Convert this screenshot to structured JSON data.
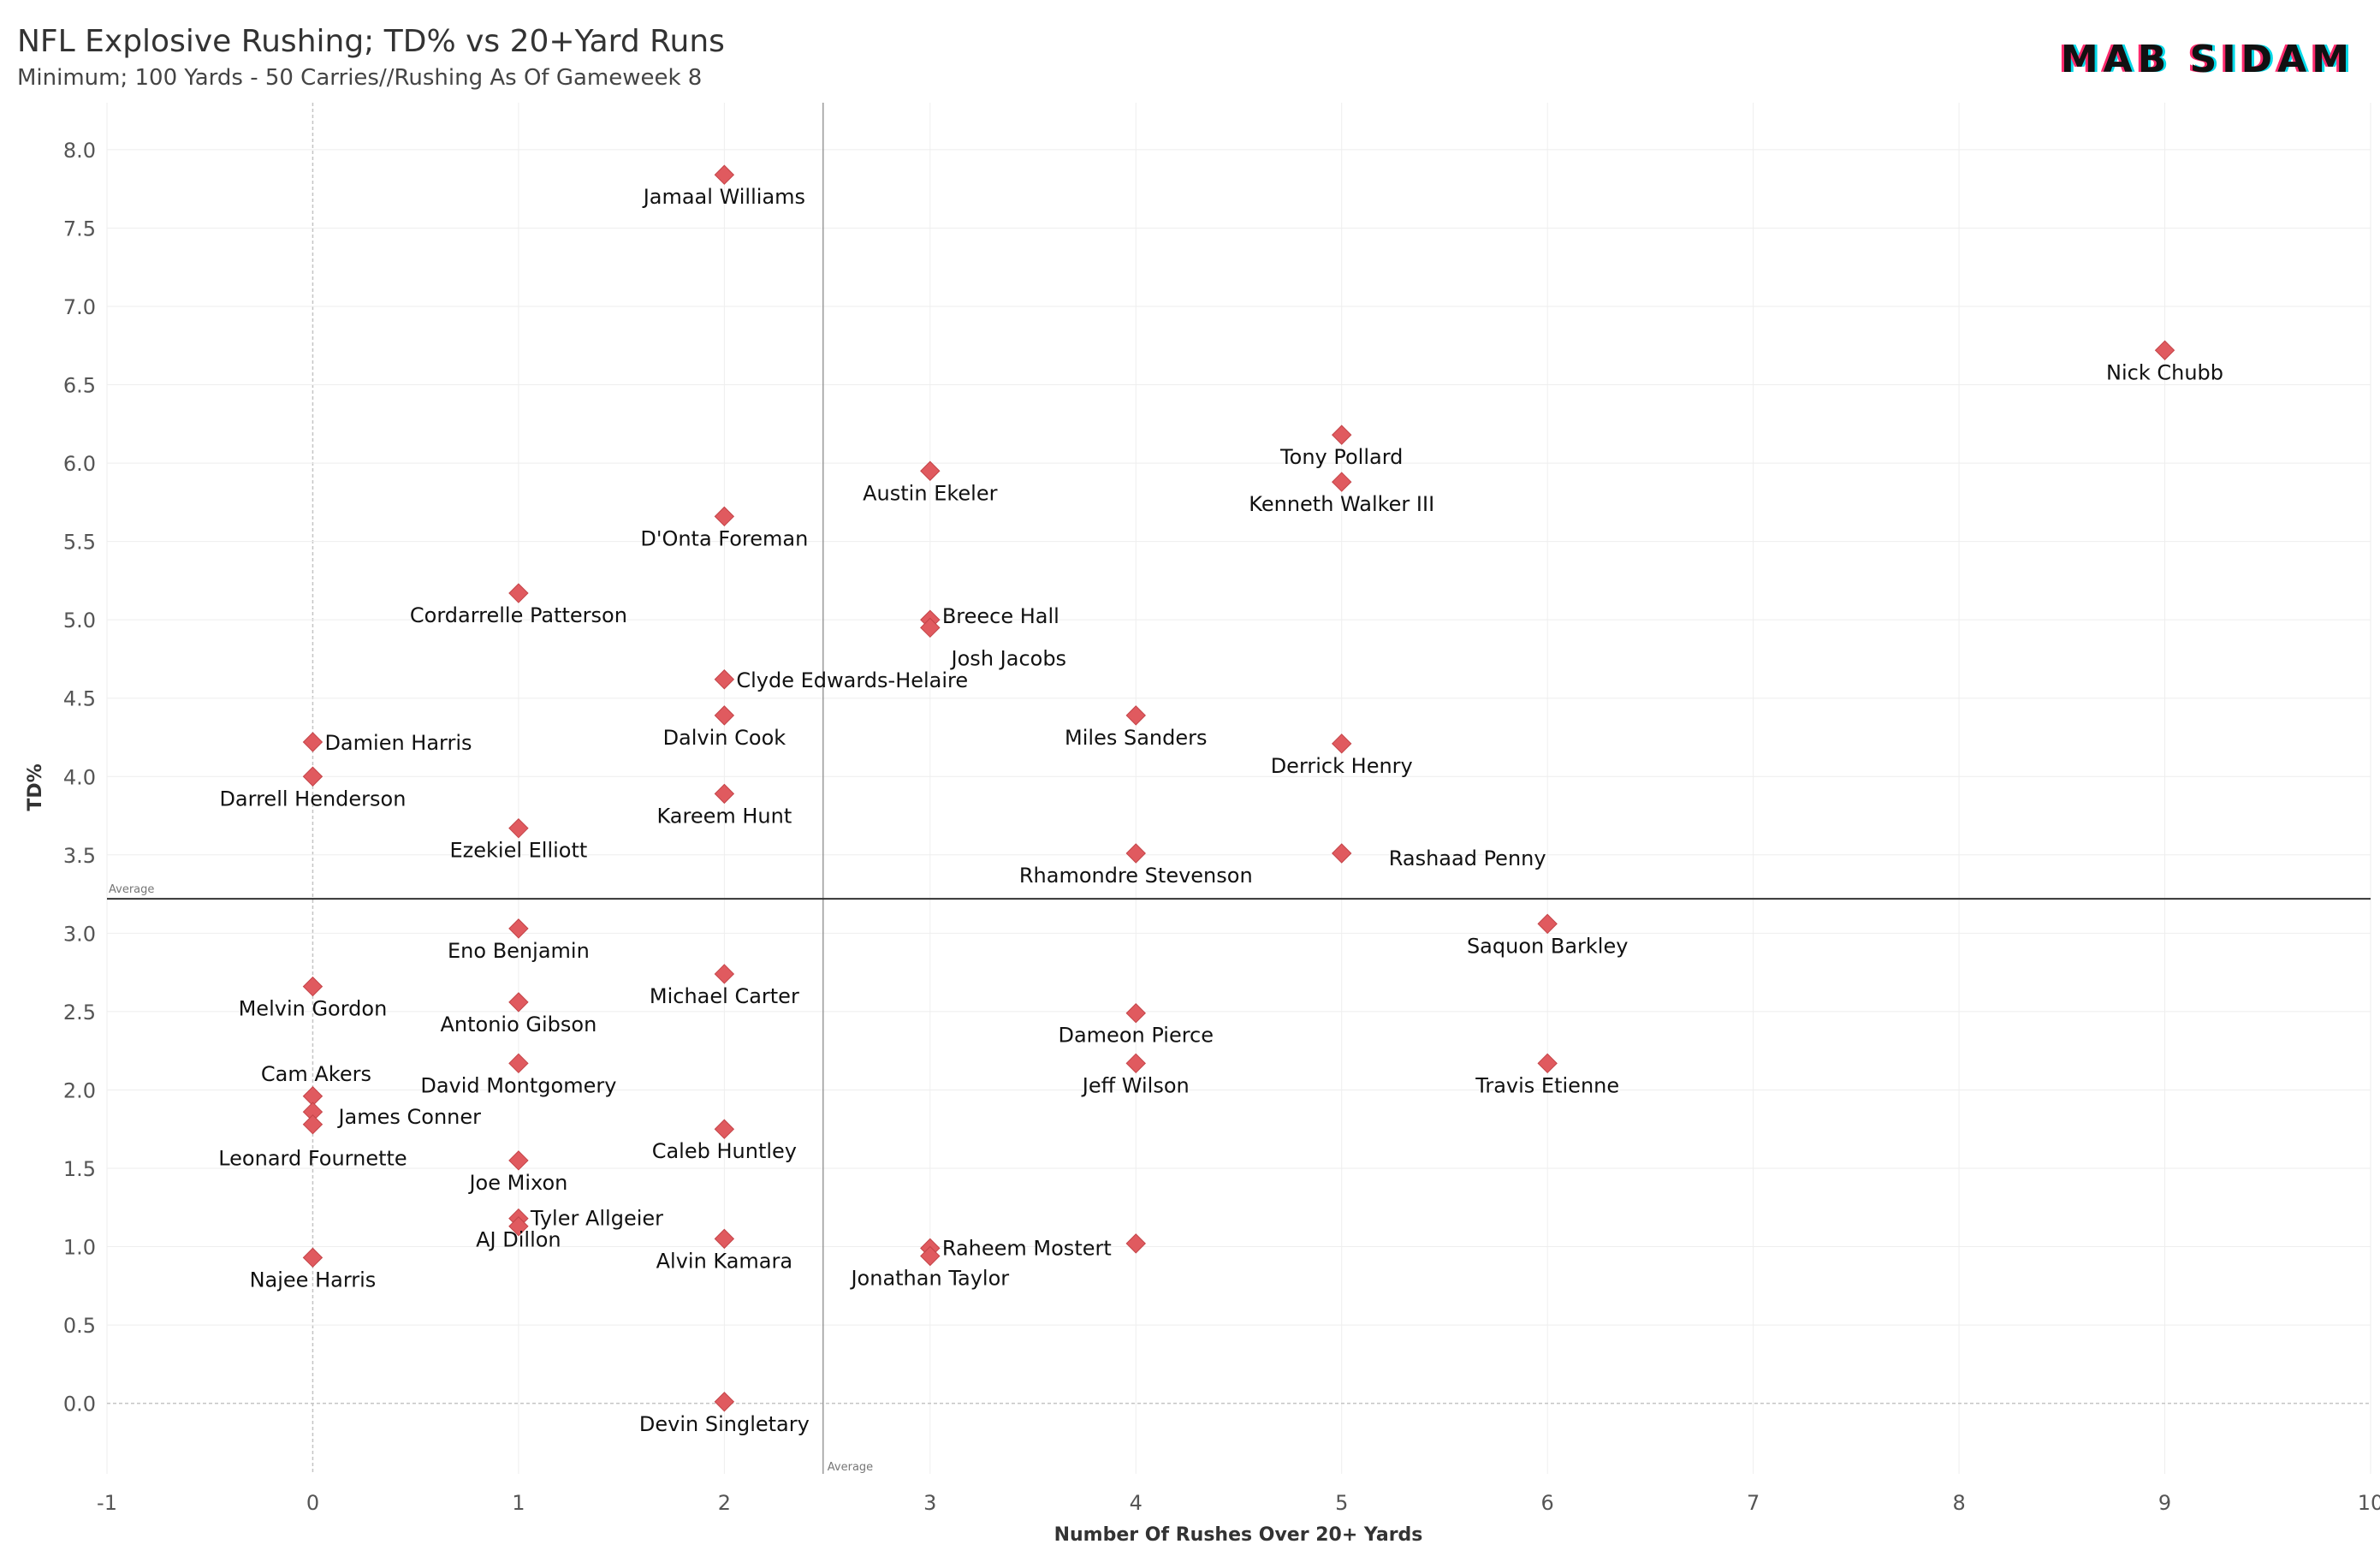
{
  "header": {
    "title": "NFL Explosive Rushing; TD% vs 20+Yard Runs",
    "subtitle": "Minimum; 100 Yards - 50 Carries//Rushing As Of Gameweek 8",
    "brand": "MAB SIDAM"
  },
  "chart_data": {
    "type": "scatter",
    "xlabel": "Number Of Rushes Over 20+ Yards",
    "ylabel": "TD%",
    "xlim": [
      -1,
      10
    ],
    "ylim": [
      -0.45,
      8.3
    ],
    "x_ticks": [
      "-1",
      "0",
      "1",
      "2",
      "3",
      "4",
      "5",
      "6",
      "7",
      "8",
      "9",
      "10"
    ],
    "y_ticks": [
      "0.0",
      "0.5",
      "1.0",
      "1.5",
      "2.0",
      "2.5",
      "3.0",
      "3.5",
      "4.0",
      "4.5",
      "5.0",
      "5.5",
      "6.0",
      "6.5",
      "7.0",
      "7.5",
      "8.0"
    ],
    "reference_lines": {
      "x_average": 2.48,
      "y_average": 3.22,
      "label": "Average"
    },
    "marker_color": "#e05a5f",
    "grid": true,
    "points": [
      {
        "name": "Jamaal Williams",
        "x": 2,
        "y": 7.84
      },
      {
        "name": "Nick Chubb",
        "x": 9,
        "y": 6.72
      },
      {
        "name": "Tony Pollard",
        "x": 5,
        "y": 6.18
      },
      {
        "name": "Kenneth Walker III",
        "x": 5,
        "y": 5.88
      },
      {
        "name": "Austin Ekeler",
        "x": 3,
        "y": 5.95
      },
      {
        "name": "D'Onta Foreman",
        "x": 2,
        "y": 5.66
      },
      {
        "name": "Cordarrelle Patterson",
        "x": 1,
        "y": 5.17
      },
      {
        "name": "Breece Hall",
        "x": 3,
        "y": 5.0
      },
      {
        "name": "Josh Jacobs",
        "x": 3,
        "y": 4.95
      },
      {
        "name": "Clyde Edwards-Helaire",
        "x": 2,
        "y": 4.62
      },
      {
        "name": "Dalvin Cook",
        "x": 2,
        "y": 4.39
      },
      {
        "name": "Miles Sanders",
        "x": 4,
        "y": 4.39
      },
      {
        "name": "Damien Harris",
        "x": 0,
        "y": 4.22
      },
      {
        "name": "Derrick Henry",
        "x": 5,
        "y": 4.21
      },
      {
        "name": "Darrell Henderson",
        "x": 0,
        "y": 4.0
      },
      {
        "name": "Kareem Hunt",
        "x": 2,
        "y": 3.89
      },
      {
        "name": "Ezekiel Elliott",
        "x": 1,
        "y": 3.67
      },
      {
        "name": "Rhamondre Stevenson",
        "x": 4,
        "y": 3.51
      },
      {
        "name": "Rashaad Penny",
        "x": 5,
        "y": 3.51
      },
      {
        "name": "Saquon Barkley",
        "x": 6,
        "y": 3.06
      },
      {
        "name": "Eno Benjamin",
        "x": 1,
        "y": 3.03
      },
      {
        "name": "Michael Carter",
        "x": 2,
        "y": 2.74
      },
      {
        "name": "Melvin Gordon",
        "x": 0,
        "y": 2.66
      },
      {
        "name": "Antonio Gibson",
        "x": 1,
        "y": 2.56
      },
      {
        "name": "Dameon Pierce",
        "x": 4,
        "y": 2.49
      },
      {
        "name": "David Montgomery",
        "x": 1,
        "y": 2.17
      },
      {
        "name": "Jeff Wilson",
        "x": 4,
        "y": 2.17
      },
      {
        "name": "Travis Etienne",
        "x": 6,
        "y": 2.17
      },
      {
        "name": "Cam Akers",
        "x": 0,
        "y": 1.96
      },
      {
        "name": "James Conner",
        "x": 0,
        "y": 1.86
      },
      {
        "name": "Leonard Fournette",
        "x": 0,
        "y": 1.78
      },
      {
        "name": "Caleb Huntley",
        "x": 2,
        "y": 1.75
      },
      {
        "name": "Joe Mixon",
        "x": 1,
        "y": 1.55
      },
      {
        "name": "Tyler Allgeier",
        "x": 1,
        "y": 1.18
      },
      {
        "name": "AJ Dillon",
        "x": 1,
        "y": 1.13
      },
      {
        "name": "Alvin Kamara",
        "x": 2,
        "y": 1.05
      },
      {
        "name": "Raheem Mostert",
        "x": 3,
        "y": 0.99
      },
      {
        "name": "Jonathan Taylor",
        "x": 3,
        "y": 0.94
      },
      {
        "name": "Najee Harris",
        "x": 0,
        "y": 0.93
      },
      {
        "name": "Devin Singletary",
        "x": 2,
        "y": 0.01
      },
      {
        "name": "",
        "x": 4,
        "y": 1.02
      }
    ]
  }
}
